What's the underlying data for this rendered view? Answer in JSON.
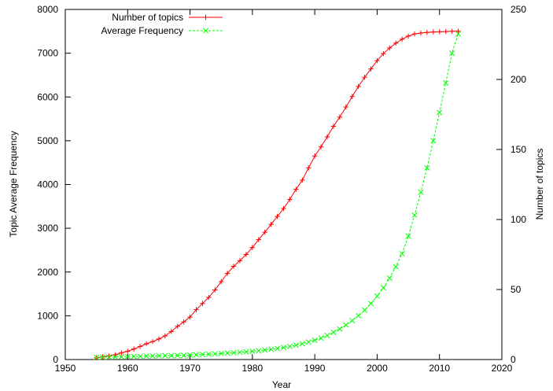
{
  "chart_data": {
    "type": "line",
    "xlabel": "Year",
    "ylabel": "Topic Average Frequency",
    "y2label": "Number of topics",
    "xlim": [
      1950,
      2020
    ],
    "ylim": [
      0,
      8000
    ],
    "y2lim": [
      0,
      250
    ],
    "x_ticks": [
      1950,
      1960,
      1970,
      1980,
      1990,
      2000,
      2010,
      2020
    ],
    "y_ticks": [
      0,
      1000,
      2000,
      3000,
      4000,
      5000,
      6000,
      7000,
      8000
    ],
    "y2_ticks": [
      0,
      50,
      100,
      150,
      200,
      250
    ],
    "grid": false,
    "legend_position": "top-left",
    "series": [
      {
        "name": "Number of topics",
        "color": "#ff0000",
        "marker": "plus",
        "axis": "left",
        "x": [
          1955,
          1956,
          1957,
          1958,
          1959,
          1960,
          1961,
          1962,
          1963,
          1964,
          1965,
          1966,
          1967,
          1968,
          1969,
          1970,
          1971,
          1972,
          1973,
          1974,
          1975,
          1976,
          1977,
          1978,
          1979,
          1980,
          1981,
          1982,
          1983,
          1984,
          1985,
          1986,
          1987,
          1988,
          1989,
          1990,
          1991,
          1992,
          1993,
          1994,
          1995,
          1996,
          1997,
          1998,
          1999,
          2000,
          2001,
          2002,
          2003,
          2004,
          2005,
          2006,
          2007,
          2008,
          2009,
          2010,
          2011,
          2012,
          2013
        ],
        "values": [
          40,
          60,
          80,
          110,
          150,
          190,
          240,
          300,
          360,
          410,
          470,
          540,
          640,
          760,
          860,
          970,
          1140,
          1280,
          1420,
          1590,
          1780,
          1970,
          2130,
          2260,
          2400,
          2560,
          2740,
          2910,
          3090,
          3270,
          3450,
          3660,
          3890,
          4100,
          4380,
          4650,
          4860,
          5090,
          5330,
          5540,
          5770,
          6010,
          6240,
          6450,
          6640,
          6830,
          6990,
          7120,
          7230,
          7320,
          7390,
          7440,
          7460,
          7475,
          7485,
          7490,
          7495,
          7500,
          7500
        ]
      },
      {
        "name": "Average Frequency",
        "color": "#00ff00",
        "marker": "x",
        "axis": "right",
        "x": [
          1955,
          1956,
          1957,
          1958,
          1959,
          1960,
          1961,
          1962,
          1963,
          1964,
          1965,
          1966,
          1967,
          1968,
          1969,
          1970,
          1971,
          1972,
          1973,
          1974,
          1975,
          1976,
          1977,
          1978,
          1979,
          1980,
          1981,
          1982,
          1983,
          1984,
          1985,
          1986,
          1987,
          1988,
          1989,
          1990,
          1991,
          1992,
          1993,
          1994,
          1995,
          1996,
          1997,
          1998,
          1999,
          2000,
          2001,
          2002,
          2003,
          2004,
          2005,
          2006,
          2007,
          2008,
          2009,
          2010,
          2011,
          2012,
          2013
        ],
        "values": [
          1.6,
          1.7,
          1.8,
          1.9,
          2.0,
          2.1,
          2.2,
          2.3,
          2.4,
          2.5,
          2.6,
          2.7,
          2.8,
          2.9,
          3.0,
          3.2,
          3.4,
          3.6,
          3.8,
          4.0,
          4.3,
          4.6,
          4.9,
          5.2,
          5.5,
          5.9,
          6.3,
          6.8,
          7.3,
          7.9,
          8.6,
          9.4,
          10.3,
          11.3,
          12.5,
          13.8,
          15.3,
          17.2,
          19.4,
          21.9,
          24.7,
          27.8,
          31.3,
          35.3,
          40.0,
          45.3,
          51.3,
          58.1,
          66.3,
          75.6,
          88.1,
          103.1,
          119.4,
          136.9,
          156.3,
          176.3,
          197.5,
          218.8,
          232.5
        ]
      }
    ]
  }
}
